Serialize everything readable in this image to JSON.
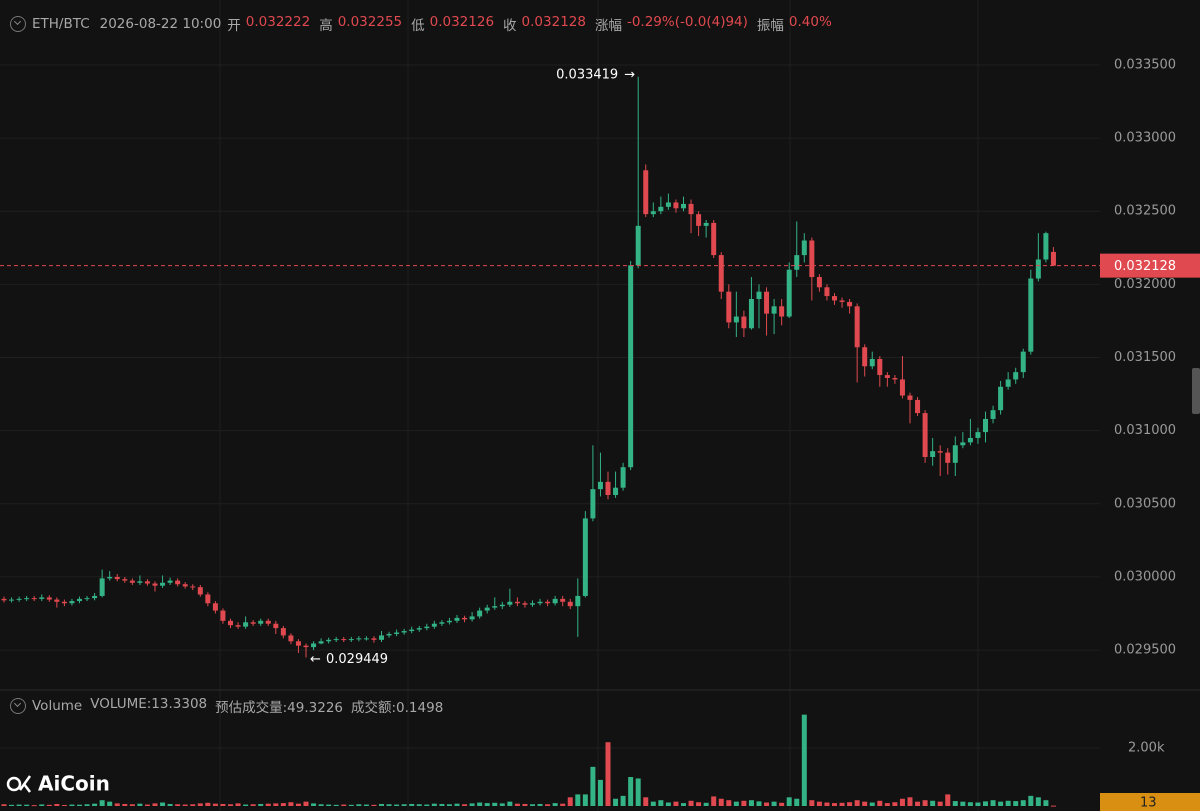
{
  "header": {
    "symbol": "ETH/BTC",
    "datetime": "2026-08-22 10:00",
    "fields": [
      {
        "label": "开",
        "value": "0.032222"
      },
      {
        "label": "高",
        "value": "0.032255"
      },
      {
        "label": "低",
        "value": "0.032126"
      },
      {
        "label": "收",
        "value": "0.032128"
      },
      {
        "label": "涨幅",
        "value": "-0.29%(-0.0(4)94)"
      },
      {
        "label": "振幅",
        "value": "0.40%"
      }
    ]
  },
  "volume_header": {
    "title": "Volume",
    "items": [
      "VOLUME:13.3308",
      "预估成交量:49.3226",
      "成交额:0.1498"
    ]
  },
  "logo": "AiCoin",
  "chart_data": {
    "type": "candlestick",
    "up_color": "#33b386",
    "down_color": "#e0494f",
    "ylim": [
      0.029227,
      0.033944
    ],
    "yticks": [
      {
        "value": 0.0295,
        "label": "0.029500"
      },
      {
        "value": 0.03,
        "label": "0.030000"
      },
      {
        "value": 0.0305,
        "label": "0.030500"
      },
      {
        "value": 0.031,
        "label": "0.031000"
      },
      {
        "value": 0.0315,
        "label": "0.031500"
      },
      {
        "value": 0.032,
        "label": "0.032000"
      },
      {
        "value": 0.0325,
        "label": "0.032500"
      },
      {
        "value": 0.033,
        "label": "0.033000"
      },
      {
        "value": 0.0335,
        "label": "0.033500"
      }
    ],
    "volume_ylim": [
      0,
      4000
    ],
    "volume_yticks": [
      {
        "value": 2000,
        "label": "2.00k"
      }
    ],
    "ohlc": [
      [
        0.02985,
        0.029865,
        0.029825,
        0.02984
      ],
      [
        0.02984,
        0.02986,
        0.029825,
        0.029845
      ],
      [
        0.029845,
        0.029865,
        0.02983,
        0.02985
      ],
      [
        0.02985,
        0.02987,
        0.029835,
        0.029855
      ],
      [
        0.029855,
        0.02987,
        0.029835,
        0.02985
      ],
      [
        0.02985,
        0.02988,
        0.029835,
        0.02986
      ],
      [
        0.02986,
        0.029875,
        0.02983,
        0.029845
      ],
      [
        0.029845,
        0.02986,
        0.02979,
        0.02983
      ],
      [
        0.02983,
        0.029845,
        0.0298,
        0.02982
      ],
      [
        0.02982,
        0.02985,
        0.029805,
        0.029835
      ],
      [
        0.029835,
        0.029865,
        0.02982,
        0.02985
      ],
      [
        0.02985,
        0.02987,
        0.029835,
        0.029855
      ],
      [
        0.029855,
        0.02989,
        0.02984,
        0.02987
      ],
      [
        0.02987,
        0.03005,
        0.02986,
        0.02999
      ],
      [
        0.02999,
        0.03004,
        0.029975,
        0.03
      ],
      [
        0.03,
        0.03002,
        0.02997,
        0.029985
      ],
      [
        0.029985,
        0.03,
        0.02996,
        0.029975
      ],
      [
        0.029975,
        0.02999,
        0.029945,
        0.02996
      ],
      [
        0.02996,
        0.03001,
        0.029945,
        0.02997
      ],
      [
        0.02997,
        0.029985,
        0.02994,
        0.029955
      ],
      [
        0.029955,
        0.02997,
        0.0299,
        0.02994
      ],
      [
        0.02994,
        0.03001,
        0.029925,
        0.02996
      ],
      [
        0.02996,
        0.029995,
        0.029945,
        0.029975
      ],
      [
        0.029975,
        0.02999,
        0.029935,
        0.02995
      ],
      [
        0.02995,
        0.029965,
        0.02992,
        0.029935
      ],
      [
        0.029935,
        0.02995,
        0.02991,
        0.02993
      ],
      [
        0.02993,
        0.029945,
        0.029865,
        0.02988
      ],
      [
        0.02988,
        0.029895,
        0.0298,
        0.02982
      ],
      [
        0.02982,
        0.029835,
        0.02975,
        0.02977
      ],
      [
        0.02977,
        0.029785,
        0.02968,
        0.0297
      ],
      [
        0.0297,
        0.029715,
        0.02965,
        0.02967
      ],
      [
        0.02967,
        0.02969,
        0.029645,
        0.02966
      ],
      [
        0.02966,
        0.02973,
        0.029645,
        0.02969
      ],
      [
        0.02969,
        0.029705,
        0.029665,
        0.02968
      ],
      [
        0.02968,
        0.029715,
        0.029665,
        0.0297
      ],
      [
        0.0297,
        0.029715,
        0.029665,
        0.02968
      ],
      [
        0.02968,
        0.0297,
        0.02961,
        0.02965
      ],
      [
        0.02965,
        0.029665,
        0.02958,
        0.0296
      ],
      [
        0.0296,
        0.029615,
        0.02954,
        0.02956
      ],
      [
        0.02956,
        0.029575,
        0.02948,
        0.02953
      ],
      [
        0.02953,
        0.029545,
        0.029449,
        0.02952
      ],
      [
        0.02952,
        0.02956,
        0.0295,
        0.029545
      ],
      [
        0.029545,
        0.02958,
        0.02954,
        0.02956
      ],
      [
        0.02956,
        0.029585,
        0.029545,
        0.02957
      ],
      [
        0.02957,
        0.02959,
        0.029555,
        0.029575
      ],
      [
        0.029575,
        0.02959,
        0.029555,
        0.02957
      ],
      [
        0.02957,
        0.02959,
        0.029555,
        0.029575
      ],
      [
        0.029575,
        0.029595,
        0.02956,
        0.02958
      ],
      [
        0.02958,
        0.029595,
        0.029565,
        0.02958
      ],
      [
        0.02958,
        0.029595,
        0.02955,
        0.02957
      ],
      [
        0.02957,
        0.02963,
        0.029555,
        0.0296
      ],
      [
        0.0296,
        0.029625,
        0.029585,
        0.02961
      ],
      [
        0.02961,
        0.02964,
        0.029595,
        0.02962
      ],
      [
        0.02962,
        0.029645,
        0.029605,
        0.02963
      ],
      [
        0.02963,
        0.02966,
        0.029615,
        0.02964
      ],
      [
        0.02964,
        0.029665,
        0.029625,
        0.02965
      ],
      [
        0.02965,
        0.02968,
        0.029635,
        0.02966
      ],
      [
        0.02966,
        0.0297,
        0.029645,
        0.02968
      ],
      [
        0.02968,
        0.029705,
        0.029665,
        0.02969
      ],
      [
        0.02969,
        0.02972,
        0.029675,
        0.0297
      ],
      [
        0.0297,
        0.02974,
        0.029685,
        0.02972
      ],
      [
        0.02972,
        0.029735,
        0.02969,
        0.02971
      ],
      [
        0.02971,
        0.02976,
        0.029695,
        0.02973
      ],
      [
        0.02973,
        0.02979,
        0.029715,
        0.02977
      ],
      [
        0.02977,
        0.02981,
        0.02975,
        0.02979
      ],
      [
        0.02979,
        0.02986,
        0.029775,
        0.0298
      ],
      [
        0.0298,
        0.02983,
        0.02978,
        0.02981
      ],
      [
        0.02981,
        0.02992,
        0.029795,
        0.02983
      ],
      [
        0.02983,
        0.02986,
        0.0298,
        0.02982
      ],
      [
        0.02982,
        0.029835,
        0.02979,
        0.02981
      ],
      [
        0.02981,
        0.02984,
        0.029795,
        0.02982
      ],
      [
        0.02982,
        0.02985,
        0.029805,
        0.02983
      ],
      [
        0.02983,
        0.029845,
        0.0298,
        0.02982
      ],
      [
        0.02982,
        0.02987,
        0.029805,
        0.02985
      ],
      [
        0.02985,
        0.02987,
        0.0298,
        0.02983
      ],
      [
        0.02983,
        0.02985,
        0.02978,
        0.0298
      ],
      [
        0.0298,
        0.02999,
        0.02959,
        0.02987
      ],
      [
        0.02987,
        0.03045,
        0.02986,
        0.0304
      ],
      [
        0.0304,
        0.0309,
        0.03038,
        0.0306
      ],
      [
        0.0306,
        0.03085,
        0.03055,
        0.03065
      ],
      [
        0.03065,
        0.03072,
        0.03053,
        0.03056
      ],
      [
        0.03056,
        0.03072,
        0.03054,
        0.03061
      ],
      [
        0.03061,
        0.03078,
        0.03059,
        0.03075
      ],
      [
        0.03075,
        0.03216,
        0.03073,
        0.03213
      ],
      [
        0.03213,
        0.033419,
        0.03211,
        0.0324
      ],
      [
        0.03278,
        0.03282,
        0.03246,
        0.03248
      ],
      [
        0.03248,
        0.03256,
        0.03246,
        0.0325
      ],
      [
        0.0325,
        0.0326,
        0.03248,
        0.03253
      ],
      [
        0.03253,
        0.03262,
        0.03251,
        0.03256
      ],
      [
        0.03256,
        0.03258,
        0.03249,
        0.03252
      ],
      [
        0.03252,
        0.0326,
        0.0325,
        0.03255
      ],
      [
        0.03255,
        0.03258,
        0.03235,
        0.03248
      ],
      [
        0.03248,
        0.0325,
        0.03233,
        0.0324
      ],
      [
        0.0324,
        0.03244,
        0.03232,
        0.03242
      ],
      [
        0.03242,
        0.03244,
        0.03218,
        0.0322
      ],
      [
        0.0322,
        0.03222,
        0.0319,
        0.03195
      ],
      [
        0.03195,
        0.032,
        0.0317,
        0.03174
      ],
      [
        0.03174,
        0.03195,
        0.03164,
        0.03178
      ],
      [
        0.03178,
        0.03182,
        0.03164,
        0.0317
      ],
      [
        0.0317,
        0.03205,
        0.03169,
        0.0319
      ],
      [
        0.0319,
        0.032,
        0.0317,
        0.03195
      ],
      [
        0.03195,
        0.03198,
        0.03165,
        0.0318
      ],
      [
        0.0318,
        0.0319,
        0.03166,
        0.03185
      ],
      [
        0.03185,
        0.0319,
        0.03172,
        0.03178
      ],
      [
        0.03178,
        0.03215,
        0.03177,
        0.0321
      ],
      [
        0.0321,
        0.03243,
        0.03205,
        0.0322
      ],
      [
        0.0322,
        0.03235,
        0.03215,
        0.0323
      ],
      [
        0.0323,
        0.03232,
        0.03189,
        0.03205
      ],
      [
        0.03205,
        0.03207,
        0.03195,
        0.03198
      ],
      [
        0.03198,
        0.032,
        0.03189,
        0.03192
      ],
      [
        0.03192,
        0.03194,
        0.03186,
        0.03189
      ],
      [
        0.03189,
        0.03191,
        0.03184,
        0.03188
      ],
      [
        0.03188,
        0.0319,
        0.0318,
        0.03185
      ],
      [
        0.03185,
        0.03187,
        0.03133,
        0.03157
      ],
      [
        0.03157,
        0.03159,
        0.03137,
        0.03144
      ],
      [
        0.03144,
        0.03154,
        0.03142,
        0.03149
      ],
      [
        0.03149,
        0.03151,
        0.0313,
        0.03138
      ],
      [
        0.03138,
        0.0314,
        0.0313,
        0.03136
      ],
      [
        0.03136,
        0.03138,
        0.03132,
        0.03135
      ],
      [
        0.03135,
        0.03151,
        0.03122,
        0.03124
      ],
      [
        0.03124,
        0.03126,
        0.03105,
        0.03121
      ],
      [
        0.03121,
        0.03123,
        0.0311,
        0.03112
      ],
      [
        0.03112,
        0.03114,
        0.03078,
        0.03082
      ],
      [
        0.03082,
        0.03095,
        0.03076,
        0.03086
      ],
      [
        0.03086,
        0.0309,
        0.03069,
        0.03085
      ],
      [
        0.03085,
        0.03088,
        0.0307,
        0.03078
      ],
      [
        0.03078,
        0.03096,
        0.03069,
        0.0309
      ],
      [
        0.0309,
        0.03099,
        0.03088,
        0.03092
      ],
      [
        0.03092,
        0.03108,
        0.0309,
        0.03095
      ],
      [
        0.03095,
        0.03102,
        0.03091,
        0.03099
      ],
      [
        0.03099,
        0.03113,
        0.03092,
        0.03108
      ],
      [
        0.03108,
        0.03117,
        0.03105,
        0.03114
      ],
      [
        0.03114,
        0.03134,
        0.03111,
        0.0313
      ],
      [
        0.0313,
        0.0314,
        0.03128,
        0.03135
      ],
      [
        0.03135,
        0.03143,
        0.03132,
        0.0314
      ],
      [
        0.0314,
        0.03156,
        0.03136,
        0.03154
      ],
      [
        0.03154,
        0.0321,
        0.03152,
        0.03204
      ],
      [
        0.03204,
        0.03235,
        0.03202,
        0.03217
      ],
      [
        0.03217,
        0.03236,
        0.03215,
        0.03235
      ],
      [
        0.032222,
        0.032255,
        0.032126,
        0.032128
      ]
    ],
    "volume": [
      60,
      40,
      50,
      45,
      30,
      55,
      40,
      70,
      35,
      50,
      45,
      60,
      80,
      200,
      150,
      90,
      70,
      60,
      80,
      50,
      90,
      120,
      70,
      60,
      50,
      60,
      90,
      110,
      80,
      70,
      60,
      90,
      50,
      60,
      70,
      80,
      90,
      100,
      130,
      80,
      150,
      90,
      60,
      50,
      40,
      50,
      40,
      60,
      50,
      40,
      70,
      60,
      50,
      60,
      70,
      60,
      50,
      80,
      70,
      60,
      80,
      60,
      90,
      120,
      100,
      110,
      90,
      150,
      80,
      70,
      60,
      70,
      60,
      100,
      80,
      300,
      400,
      400,
      1350,
      900,
      2200,
      250,
      350,
      1000,
      950,
      300,
      150,
      200,
      120,
      150,
      100,
      180,
      130,
      110,
      330,
      250,
      200,
      150,
      180,
      200,
      160,
      120,
      150,
      110,
      300,
      250,
      3150,
      200,
      150,
      120,
      100,
      110,
      130,
      200,
      150,
      120,
      180,
      100,
      130,
      250,
      300,
      150,
      200,
      180,
      150,
      400,
      170,
      150,
      130,
      120,
      160,
      200,
      150,
      180,
      170,
      200,
      350,
      300,
      200,
      13
    ]
  }
}
